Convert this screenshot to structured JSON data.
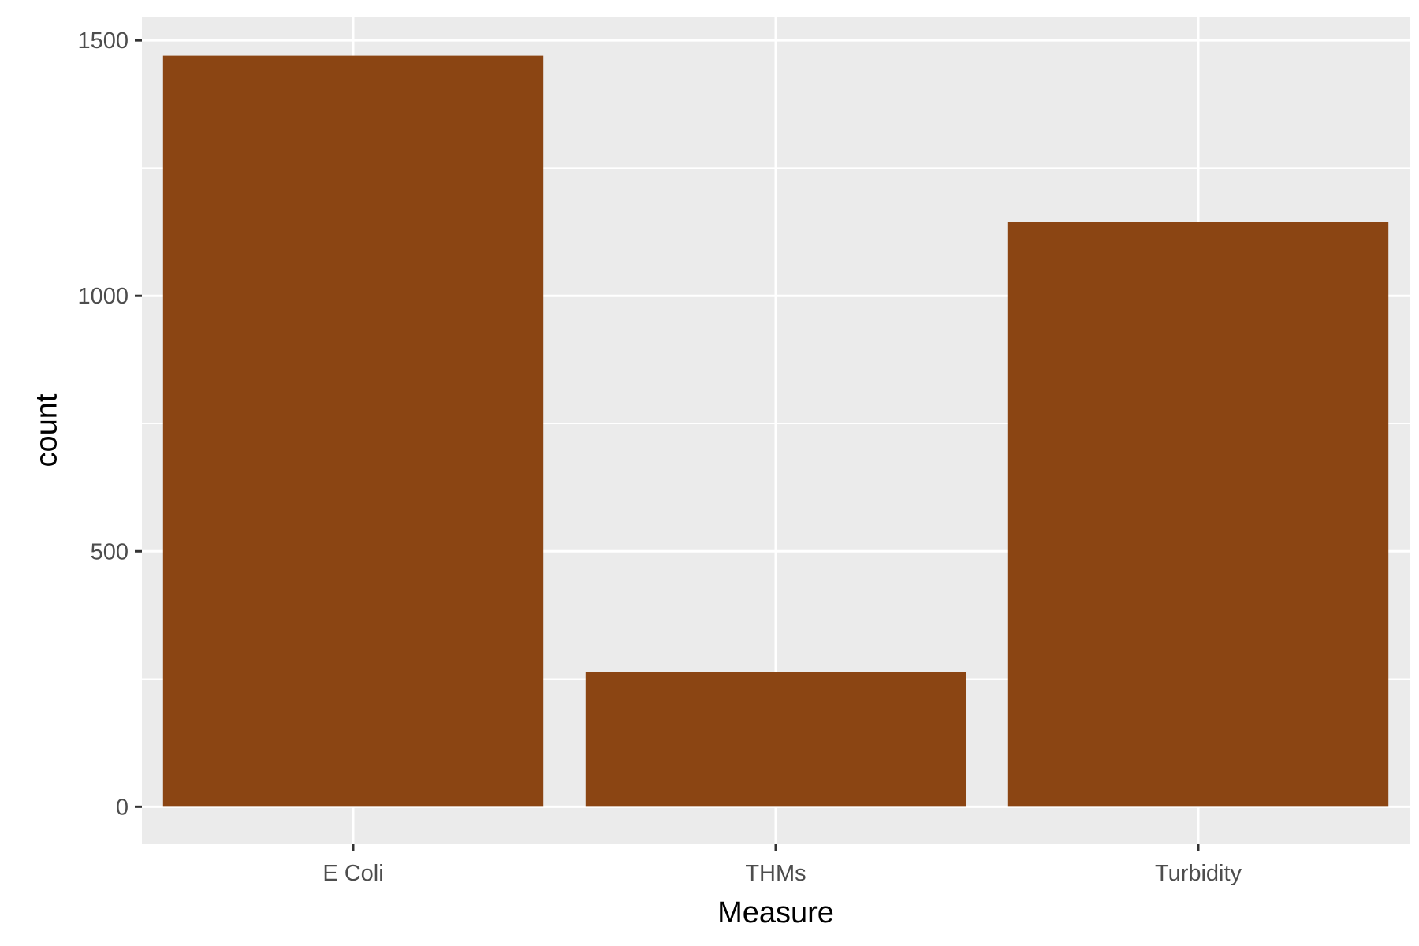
{
  "chart_data": {
    "type": "bar",
    "title": "",
    "xlabel": "Measure",
    "ylabel": "count",
    "categories": [
      "E Coli",
      "THMs",
      "Turbidity"
    ],
    "values": [
      1470,
      263,
      1144
    ],
    "ylim": [
      -72,
      1545
    ],
    "yticks": [
      0,
      500,
      1000,
      1500
    ],
    "y_minor_gridlines": [
      250,
      750,
      1250
    ],
    "grid": true,
    "legend": "none",
    "colors": {
      "bar": "#8B4513",
      "panel_background": "#EBEBEB",
      "gridline": "#FFFFFF",
      "tick_label": "#4D4D4D",
      "axis_title": "#000000"
    }
  }
}
